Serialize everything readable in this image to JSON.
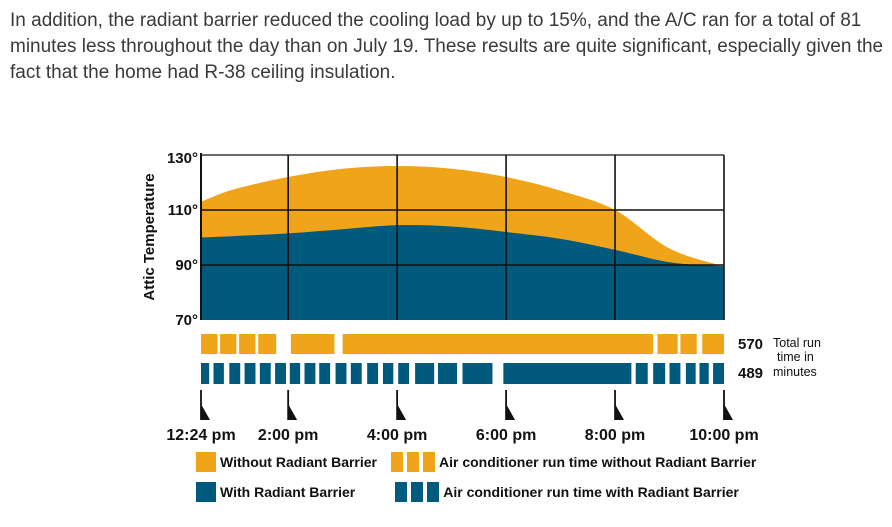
{
  "paragraph": "In addition, the radiant barrier reduced the cooling load by up to 15%, and the A/C ran for a total of 81 minutes less throughout the day than on July 19. These results are quite significant, especially given the fact that the home had R-38 ceiling insulation.",
  "colors": {
    "without": "#f0a419",
    "with": "#005a7e",
    "grid": "#111111"
  },
  "chart_data": {
    "type": "area",
    "ylabel": "Attic Temperature",
    "ylim": [
      70,
      130
    ],
    "y_ticks": [
      "70°",
      "90°",
      "110°",
      "130°"
    ],
    "x_tick_labels": [
      "12:24 pm",
      "2:00 pm",
      "4:00 pm",
      "6:00 pm",
      "8:00 pm",
      "10:00 pm"
    ],
    "x_tick_hours": [
      12.4,
      14,
      16,
      18,
      20,
      22
    ],
    "xlim": [
      12.4,
      22
    ],
    "x_hours": [
      12.4,
      13,
      14,
      15,
      16,
      17,
      18,
      19,
      20,
      21,
      22
    ],
    "series": [
      {
        "name": "Without Radiant Barrier",
        "values": [
          113,
          117.5,
          122,
          125,
          126,
          125,
          122,
          117,
          110,
          96,
          89.5
        ]
      },
      {
        "name": "With Radiant Barrier",
        "values": [
          100,
          100.5,
          101.5,
          103,
          104.5,
          104,
          102,
          99.5,
          95.5,
          91,
          89.5
        ]
      }
    ],
    "run_time": {
      "total_label": "Total run time in minutes",
      "without_total": "570",
      "with_total": "489",
      "without_segments": [
        [
          12.4,
          12.7
        ],
        [
          12.75,
          13.05
        ],
        [
          13.1,
          13.4
        ],
        [
          13.45,
          13.78
        ],
        [
          14.05,
          14.85
        ],
        [
          15.0,
          20.7
        ],
        [
          20.78,
          21.15
        ],
        [
          21.2,
          21.5
        ],
        [
          21.6,
          22.0
        ]
      ],
      "with_segments": [
        [
          12.4,
          12.55
        ],
        [
          12.63,
          12.82
        ],
        [
          12.92,
          13.12
        ],
        [
          13.2,
          13.4
        ],
        [
          13.48,
          13.68
        ],
        [
          13.76,
          13.96
        ],
        [
          14.03,
          14.22
        ],
        [
          14.3,
          14.5
        ],
        [
          14.57,
          14.77
        ],
        [
          14.87,
          15.07
        ],
        [
          15.15,
          15.35
        ],
        [
          15.45,
          15.65
        ],
        [
          15.74,
          15.93
        ],
        [
          16.02,
          16.22
        ],
        [
          16.33,
          16.68
        ],
        [
          16.75,
          17.1
        ],
        [
          17.2,
          17.75
        ],
        [
          17.95,
          20.3
        ],
        [
          20.38,
          20.6
        ],
        [
          20.7,
          20.92
        ],
        [
          21.0,
          21.2
        ],
        [
          21.3,
          21.48
        ],
        [
          21.55,
          21.72
        ],
        [
          21.8,
          22.0
        ]
      ]
    },
    "legend": {
      "without_area": "Without Radiant Barrier",
      "with_area": "With Radiant Barrier",
      "without_run": "Air conditioner run time without Radiant Barrier",
      "with_run": "Air conditioner run time with Radiant Barrier"
    }
  }
}
